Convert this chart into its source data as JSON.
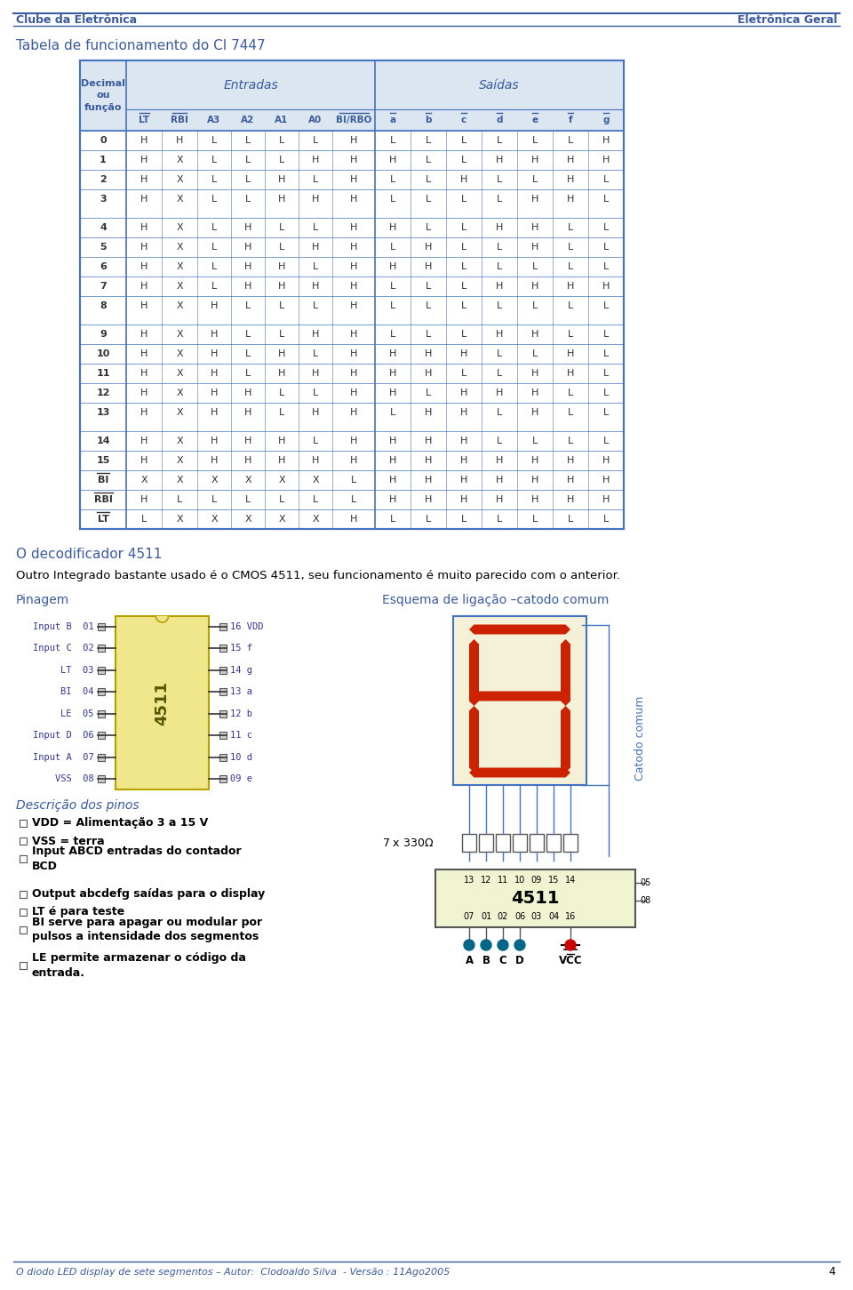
{
  "title_left": "Clube da Eletrônica",
  "title_right": "Eletrônica Geral",
  "section_title": "Tabela de funcionamento do CI 7447",
  "col_headers": [
    "LT",
    "RBI",
    "A3",
    "A2",
    "A1",
    "A0",
    "BI/RBO",
    "a",
    "b",
    "c",
    "d",
    "e",
    "f",
    "g"
  ],
  "col_headers_overline": [
    true,
    true,
    false,
    false,
    false,
    false,
    true,
    true,
    true,
    true,
    true,
    true,
    true,
    true
  ],
  "table_data": [
    [
      "0",
      "H",
      "H",
      "L",
      "L",
      "L",
      "L",
      "H",
      "L",
      "L",
      "L",
      "L",
      "L",
      "L",
      "H"
    ],
    [
      "1",
      "H",
      "X",
      "L",
      "L",
      "L",
      "H",
      "H",
      "H",
      "L",
      "L",
      "H",
      "H",
      "H",
      "H"
    ],
    [
      "2",
      "H",
      "X",
      "L",
      "L",
      "H",
      "L",
      "H",
      "L",
      "L",
      "H",
      "L",
      "L",
      "H",
      "L"
    ],
    [
      "3",
      "H",
      "X",
      "L",
      "L",
      "H",
      "H",
      "H",
      "L",
      "L",
      "L",
      "L",
      "H",
      "H",
      "L"
    ],
    [
      "4",
      "H",
      "X",
      "L",
      "H",
      "L",
      "L",
      "H",
      "H",
      "L",
      "L",
      "H",
      "H",
      "L",
      "L"
    ],
    [
      "5",
      "H",
      "X",
      "L",
      "H",
      "L",
      "H",
      "H",
      "L",
      "H",
      "L",
      "L",
      "H",
      "L",
      "L"
    ],
    [
      "6",
      "H",
      "X",
      "L",
      "H",
      "H",
      "L",
      "H",
      "H",
      "H",
      "L",
      "L",
      "L",
      "L",
      "L"
    ],
    [
      "7",
      "H",
      "X",
      "L",
      "H",
      "H",
      "H",
      "H",
      "L",
      "L",
      "L",
      "H",
      "H",
      "H",
      "H"
    ],
    [
      "8",
      "H",
      "X",
      "H",
      "L",
      "L",
      "L",
      "H",
      "L",
      "L",
      "L",
      "L",
      "L",
      "L",
      "L"
    ],
    [
      "9",
      "H",
      "X",
      "H",
      "L",
      "L",
      "H",
      "H",
      "L",
      "L",
      "L",
      "H",
      "H",
      "L",
      "L"
    ],
    [
      "10",
      "H",
      "X",
      "H",
      "L",
      "H",
      "L",
      "H",
      "H",
      "H",
      "H",
      "L",
      "L",
      "H",
      "L"
    ],
    [
      "11",
      "H",
      "X",
      "H",
      "L",
      "H",
      "H",
      "H",
      "H",
      "H",
      "L",
      "L",
      "H",
      "H",
      "L"
    ],
    [
      "12",
      "H",
      "X",
      "H",
      "H",
      "L",
      "L",
      "H",
      "H",
      "L",
      "H",
      "H",
      "H",
      "L",
      "L"
    ],
    [
      "13",
      "H",
      "X",
      "H",
      "H",
      "L",
      "H",
      "H",
      "L",
      "H",
      "H",
      "L",
      "H",
      "L",
      "L"
    ],
    [
      "14",
      "H",
      "X",
      "H",
      "H",
      "H",
      "L",
      "H",
      "H",
      "H",
      "H",
      "L",
      "L",
      "L",
      "L"
    ],
    [
      "15",
      "H",
      "X",
      "H",
      "H",
      "H",
      "H",
      "H",
      "H",
      "H",
      "H",
      "H",
      "H",
      "H",
      "H"
    ],
    [
      "BI",
      "X",
      "X",
      "X",
      "X",
      "X",
      "X",
      "L",
      "H",
      "H",
      "H",
      "H",
      "H",
      "H",
      "H"
    ],
    [
      "RBI",
      "H",
      "L",
      "L",
      "L",
      "L",
      "L",
      "L",
      "H",
      "H",
      "H",
      "H",
      "H",
      "H",
      "H"
    ],
    [
      "LT",
      "L",
      "X",
      "X",
      "X",
      "X",
      "X",
      "H",
      "L",
      "L",
      "L",
      "L",
      "L",
      "L",
      "L"
    ]
  ],
  "row_overlines": [
    false,
    false,
    false,
    false,
    false,
    false,
    false,
    false,
    false,
    false,
    false,
    false,
    false,
    false,
    false,
    false,
    true,
    true,
    true
  ],
  "section2_title": "O decodificador 4511",
  "section2_text": "Outro Integrado bastante usado é o CMOS 4511, seu funcionamento é muito parecido com o anterior.",
  "pinagem_title": "Pinagem",
  "esquema_title": "Esquema de ligação –catodo comum",
  "pin_labels_left": [
    "Input B  01",
    "Input C  02",
    "LT  03",
    "BI  04",
    "LE  05",
    "Input D  06",
    "Input A  07",
    "VSS  08"
  ],
  "pin_labels_right": [
    "16 VDD",
    "15 f",
    "14 g",
    "13 a",
    "12 b",
    "11 c",
    "10 d",
    "09 e"
  ],
  "ic_label": "4511",
  "descricao_title": "Descrição dos pinos",
  "descricao_items": [
    "VDD = Alimentação 3 a 15 V",
    "VSS = terra",
    "Input ABCD entradas do contador\nBCD",
    "Output abcdefg saídas para o display",
    "LT é para teste",
    "BI serve para apagar ou modular por\npulsos a intensidade dos segmentos",
    "LE permite armazenar o código da\nentrada."
  ],
  "footer_text": "O diodo LED display de sete segmentos – Autor:  Clodoaldo Silva  - Versão : 11Ago2005",
  "footer_page": "4",
  "color_blue": "#3a5ba0",
  "color_header_bg": "#dce6f1",
  "color_table_border": "#4472c4",
  "color_ic_fill": "#f0e68c",
  "color_ic_border": "#b8a000",
  "color_seg_on": "#cc2200",
  "color_seg_frame": "#c8c090",
  "color_seg_bg": "#f5f0d8",
  "color_wire": "#4472c4",
  "color_dot_abcd": "#006688",
  "color_dot_vcc": "#cc0000",
  "color_bot_ic_bg": "#f0f4d0",
  "color_catodo_text": "#4472c4"
}
